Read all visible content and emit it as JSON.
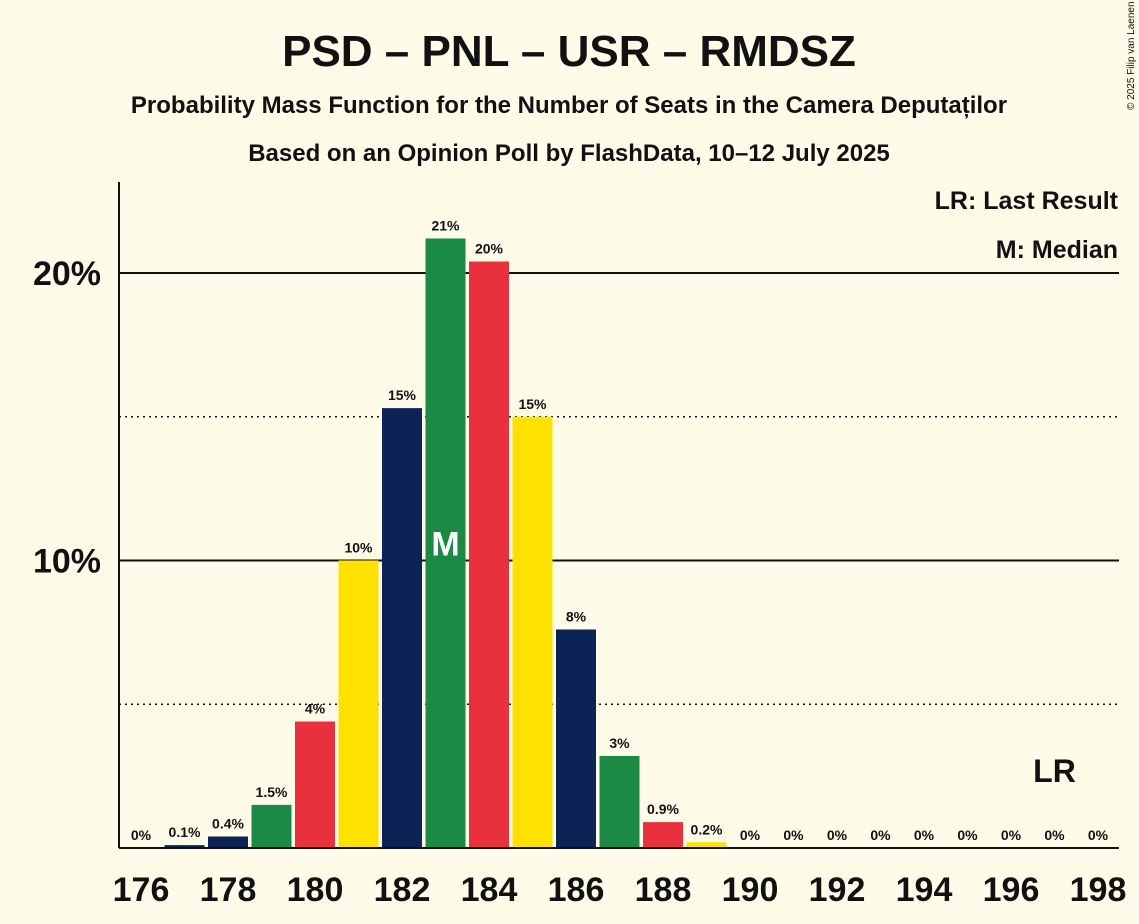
{
  "title": "PSD – PNL – USR – RMDSZ",
  "subtitle": "Probability Mass Function for the Number of Seats in the Camera Deputaților",
  "subtitle2": "Based on an Opinion Poll by FlashData, 10–12 July 2025",
  "copyright": "© 2025 Filip van Laenen",
  "legend": {
    "lr": "LR: Last Result",
    "median": "M: Median"
  },
  "markers": {
    "median_label": "M",
    "lr_label": "LR"
  },
  "colors": {
    "background": "#fefbe8",
    "psd": "#0c2356",
    "pnl": "#2a7d3c",
    "usr": "#e8313d",
    "rmdsz": "#ffe100"
  },
  "chart_data": {
    "type": "bar",
    "x": [
      176,
      177,
      178,
      179,
      180,
      181,
      182,
      183,
      184,
      185,
      186,
      187,
      188,
      189,
      190,
      191,
      192,
      193,
      194,
      195,
      196,
      197,
      198
    ],
    "values": [
      0,
      0.1,
      0.4,
      1.5,
      4.4,
      10.0,
      15.3,
      21.2,
      20.4,
      15.0,
      7.6,
      3.2,
      0.9,
      0.2,
      0,
      0,
      0,
      0,
      0,
      0,
      0,
      0,
      0
    ],
    "labels": [
      "0%",
      "0.1%",
      "0.4%",
      "1.5%",
      "4%",
      "10%",
      "15%",
      "21%",
      "20%",
      "15%",
      "8%",
      "3%",
      "0.9%",
      "0.2%",
      "0%",
      "0%",
      "0%",
      "0%",
      "0%",
      "0%",
      "0%",
      "0%",
      "0%"
    ],
    "bar_colors": [
      "#0c2356",
      "#0c2356",
      "#0c2356",
      "#1a8a44",
      "#e8313d",
      "#ffe100",
      "#0c2356",
      "#1a8a44",
      "#e8313d",
      "#ffe100",
      "#0c2356",
      "#1a8a44",
      "#e8313d",
      "#ffe100",
      "#0c2356",
      "#1a8a44",
      "#e8313d",
      "#ffe100",
      "#0c2356",
      "#1a8a44",
      "#e8313d",
      "#ffe100",
      "#0c2356"
    ],
    "xticks": [
      "176",
      "178",
      "180",
      "182",
      "184",
      "186",
      "188",
      "190",
      "192",
      "194",
      "196",
      "198"
    ],
    "yticks": [
      "10%",
      "20%"
    ],
    "ylim": [
      0,
      23
    ],
    "median_seat": 183,
    "last_result_seat": 197,
    "grid": true
  }
}
